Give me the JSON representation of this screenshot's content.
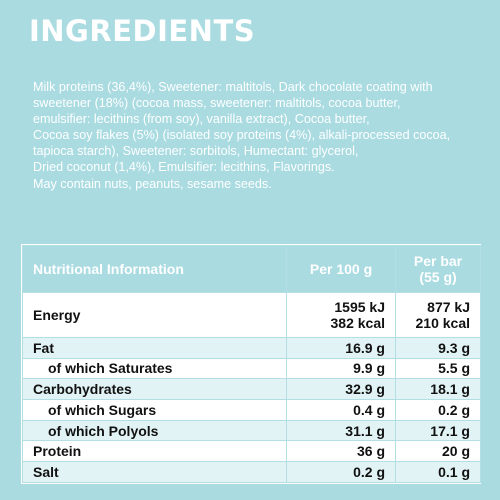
{
  "title": "INGREDIENTS",
  "ingredients_lines": [
    "Milk proteins (36,4%), Sweetener: maltitols, Dark chocolate coating with",
    "sweetener (18%) (cocoa mass, sweetener: maltitols, cocoa butter,",
    "emulsifier: lecithins (from soy), vanilla extract), Cocoa butter,",
    "Cocoa soy flakes (5%) (isolated soy proteins (4%), alkali-processed cocoa,",
    "tapioca starch), Sweetener: sorbitols, Humectant: glycerol,",
    "Dried coconut (1,4%), Emulsifier: lecithins, Flavorings.",
    "May contain nuts, peanuts, sesame seeds."
  ],
  "table": {
    "header": {
      "label": "Nutritional Information",
      "per100_label": "Per 100 g",
      "perbar_line1": "Per bar",
      "perbar_line2": "(55 g)"
    },
    "energy": {
      "label": "Energy",
      "per100_kj": "1595 kJ",
      "per100_kcal": "382 kcal",
      "perbar_kj": "877 kJ",
      "perbar_kcal": "210 kcal"
    },
    "rows": [
      {
        "label": "Fat",
        "per100": "16.9 g",
        "perbar": "9.3 g"
      },
      {
        "label": "of which Saturates",
        "per100": "9.9 g",
        "perbar": "5.5 g"
      },
      {
        "label": "Carbohydrates",
        "per100": "32.9 g",
        "perbar": "18.1 g"
      },
      {
        "label": "of which Sugars",
        "per100": "0.4 g",
        "perbar": "0.2 g"
      },
      {
        "label": "of which Polyols",
        "per100": "31.1 g",
        "perbar": "17.1 g"
      },
      {
        "label": "Protein",
        "per100": "36 g",
        "perbar": "20 g"
      },
      {
        "label": "Salt",
        "per100": "0.2 g",
        "perbar": "0.1 g"
      }
    ]
  },
  "colors": {
    "background": "#a9dbe1",
    "row_shade": "#e2f3f5",
    "text_dark": "#111111",
    "text_light": "#ffffff"
  }
}
